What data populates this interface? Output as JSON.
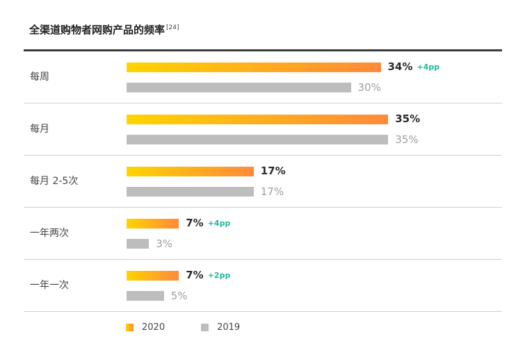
{
  "title": "全渠道购物者网购产品的频率",
  "title_ref": "[24]",
  "chart_data": {
    "type": "bar",
    "orientation": "horizontal",
    "title": "全渠道购物者网购产品的频率",
    "categories": [
      "每周",
      "每月",
      "每月 2-5次",
      "一年两次",
      "一年一次"
    ],
    "series": [
      {
        "name": "2020",
        "values": [
          34,
          35,
          17,
          7,
          7
        ],
        "labels": [
          "34%",
          "35%",
          "17%",
          "7%",
          "7%"
        ],
        "color": "#ffa534"
      },
      {
        "name": "2019",
        "values": [
          30,
          35,
          17,
          3,
          5
        ],
        "labels": [
          "30%",
          "35%",
          "17%",
          "3%",
          "5%"
        ],
        "color": "#bdbdbd"
      }
    ],
    "deltas": [
      "+4pp",
      "",
      "",
      "+4pp",
      "+2pp"
    ],
    "unit": "%",
    "legend": "bottom-left",
    "grid": false
  }
}
